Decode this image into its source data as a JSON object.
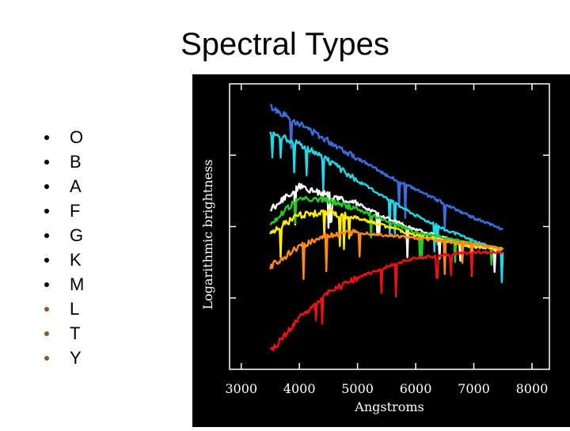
{
  "slide": {
    "title": "Spectral Types",
    "bullet_dot_colors": [
      "#000000",
      "#000000",
      "#000000",
      "#000000",
      "#000000",
      "#000000",
      "#000000",
      "#8b5a2b",
      "#8b5a2b",
      "#8b5a2b"
    ],
    "bullets": [
      "O",
      "B",
      "A",
      "F",
      "G",
      "K",
      "M",
      "L",
      "T",
      "Y"
    ]
  },
  "chart_data": {
    "type": "line",
    "title": "",
    "xlabel": "Angstroms",
    "ylabel": "Logarithmic brightness",
    "xlim": [
      2800,
      8300
    ],
    "ylim": [
      0,
      10
    ],
    "xticks": [
      3000,
      4000,
      5000,
      6000,
      7000,
      8000
    ],
    "x": [
      3500,
      4000,
      4500,
      5000,
      5500,
      6000,
      6500,
      7000,
      7500
    ],
    "series": [
      {
        "name": "O",
        "color": "#3a6fe0",
        "values": [
          9.2,
          8.6,
          8.0,
          7.4,
          6.8,
          6.3,
          5.8,
          5.3,
          4.9
        ]
      },
      {
        "name": "B",
        "color": "#22d8e8",
        "values": [
          8.3,
          7.9,
          7.3,
          6.6,
          6.0,
          5.4,
          4.9,
          4.5,
          4.1
        ]
      },
      {
        "name": "A",
        "color": "#ffffff",
        "values": [
          5.6,
          6.4,
          6.1,
          5.8,
          5.3,
          4.9,
          4.6,
          4.3,
          4.2
        ]
      },
      {
        "name": "F",
        "color": "#22cc22",
        "values": [
          5.1,
          6.0,
          5.9,
          5.6,
          5.2,
          4.8,
          4.6,
          4.4,
          4.2
        ]
      },
      {
        "name": "G",
        "color": "#ffee00",
        "values": [
          4.8,
          5.4,
          5.5,
          5.3,
          5.0,
          4.7,
          4.5,
          4.3,
          4.2
        ]
      },
      {
        "name": "K",
        "color": "#ff8a1a",
        "values": [
          3.6,
          4.3,
          4.7,
          4.8,
          4.7,
          4.6,
          4.5,
          4.4,
          4.2
        ]
      },
      {
        "name": "M",
        "color": "#ee1111",
        "values": [
          0.6,
          1.8,
          2.7,
          3.2,
          3.6,
          3.9,
          4.0,
          4.1,
          4.1
        ]
      }
    ]
  }
}
